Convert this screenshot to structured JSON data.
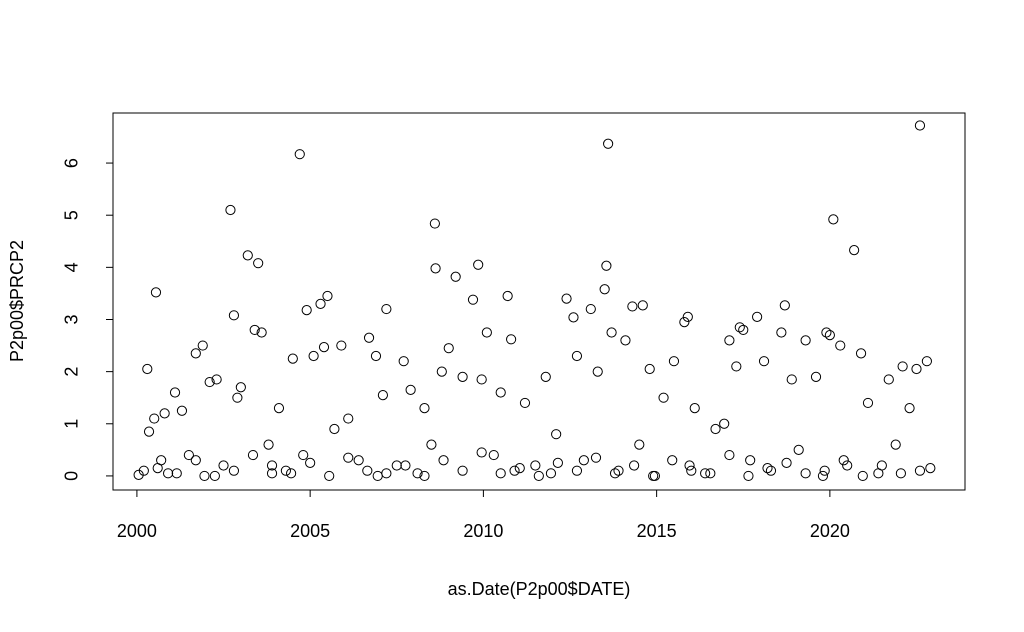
{
  "chart_data": {
    "type": "scatter",
    "x_label": "as.Date(P2p00$DATE)",
    "y_label": "P2p00$PRCP2",
    "xlim": [
      1999.31,
      2023.9
    ],
    "ylim": [
      -0.27,
      6.96
    ],
    "xticks": [
      2000,
      2005,
      2010,
      2015,
      2020
    ],
    "yticks": [
      0,
      1,
      2,
      3,
      4,
      5,
      6
    ],
    "color": "#000000",
    "grid": false,
    "x": [
      2000.2,
      2000.3,
      2000.35,
      2000.5,
      2000.55,
      2000.7,
      2000.8,
      2000.9,
      2001.1,
      2001.3,
      2001.5,
      2001.7,
      2001.9,
      2001.95,
      2002.1,
      2002.3,
      2002.5,
      2002.7,
      2002.8,
      2002.9,
      2003.0,
      2003.2,
      2003.4,
      2003.5,
      2003.6,
      2003.8,
      2003.9,
      2004.1,
      2004.3,
      2004.5,
      2004.7,
      2004.8,
      2004.9,
      2005.1,
      2005.3,
      2005.5,
      2005.4,
      2005.7,
      2005.9,
      2006.1,
      2006.4,
      2006.7,
      2006.9,
      2006.95,
      2007.1,
      2007.2,
      2007.5,
      2007.7,
      2007.9,
      2008.1,
      2008.3,
      2008.5,
      2008.6,
      2008.62,
      2008.8,
      2009.0,
      2009.2,
      2009.4,
      2009.7,
      2009.85,
      2009.95,
      2010.1,
      2010.3,
      2010.5,
      2010.7,
      2010.8,
      2010.9,
      2011.2,
      2011.5,
      2011.8,
      2011.95,
      2012.1,
      2012.4,
      2012.6,
      2012.7,
      2012.9,
      2013.1,
      2013.3,
      2013.5,
      2013.55,
      2013.6,
      2013.7,
      2013.9,
      2014.1,
      2014.3,
      2014.5,
      2014.6,
      2014.8,
      2014.95,
      2015.2,
      2015.5,
      2015.8,
      2015.9,
      2015.95,
      2016.1,
      2016.4,
      2016.7,
      2016.95,
      2017.1,
      2017.3,
      2017.4,
      2017.5,
      2017.7,
      2017.9,
      2018.1,
      2018.3,
      2018.6,
      2018.7,
      2018.9,
      2019.1,
      2019.3,
      2019.6,
      2019.8,
      2019.9,
      2020.0,
      2020.1,
      2020.3,
      2020.5,
      2020.7,
      2020.9,
      2021.1,
      2021.4,
      2021.7,
      2021.9,
      2022.1,
      2022.3,
      2022.5,
      2022.6,
      2022.8,
      2022.9,
      2000.05,
      2000.6,
      2001.15,
      2001.7,
      2002.25,
      2002.8,
      2003.35,
      2003.9,
      2004.45,
      2005.0,
      2005.55,
      2006.1,
      2006.65,
      2007.2,
      2007.75,
      2008.3,
      2008.85,
      2009.4,
      2009.95,
      2010.5,
      2011.05,
      2011.6,
      2012.15,
      2012.7,
      2013.25,
      2013.8,
      2014.35,
      2014.9,
      2015.45,
      2016.0,
      2016.55,
      2017.1,
      2017.65,
      2018.2,
      2018.75,
      2019.3,
      2019.85,
      2020.4,
      2020.95,
      2021.5,
      2022.05,
      2022.6
    ],
    "values": [
      0.1,
      2.05,
      0.85,
      1.1,
      3.52,
      0.3,
      1.2,
      0.05,
      1.6,
      1.25,
      0.4,
      2.35,
      2.5,
      0.0,
      1.8,
      1.85,
      0.2,
      5.1,
      3.08,
      1.5,
      1.7,
      4.23,
      2.8,
      4.08,
      2.75,
      0.6,
      0.05,
      1.3,
      0.1,
      2.25,
      6.17,
      0.4,
      3.18,
      2.3,
      3.3,
      3.45,
      2.47,
      0.9,
      2.5,
      1.1,
      0.3,
      2.65,
      2.3,
      0.0,
      1.55,
      3.2,
      0.2,
      2.2,
      1.65,
      0.05,
      1.3,
      0.6,
      4.84,
      3.98,
      2.0,
      2.45,
      3.82,
      1.9,
      3.38,
      4.05,
      1.85,
      2.75,
      0.4,
      1.6,
      3.45,
      2.62,
      0.1,
      1.4,
      0.2,
      1.9,
      0.05,
      0.8,
      3.4,
      3.04,
      2.3,
      0.3,
      3.2,
      2.0,
      3.58,
      4.03,
      6.37,
      2.75,
      0.1,
      2.6,
      3.25,
      0.6,
      3.27,
      2.05,
      0.0,
      1.5,
      2.2,
      2.95,
      3.05,
      0.2,
      1.3,
      0.05,
      0.9,
      1.0,
      2.6,
      2.1,
      2.85,
      2.8,
      0.3,
      3.05,
      2.2,
      0.1,
      2.75,
      3.27,
      1.85,
      0.5,
      2.6,
      1.9,
      0.0,
      2.75,
      2.7,
      4.92,
      2.5,
      0.2,
      4.33,
      2.35,
      1.4,
      0.05,
      1.85,
      0.6,
      2.1,
      1.3,
      2.05,
      6.72,
      2.2,
      0.15,
      0.02,
      0.15,
      0.05,
      0.3,
      0.0,
      0.1,
      0.4,
      0.2,
      0.05,
      0.25,
      0.0,
      0.35,
      0.1,
      0.05,
      0.2,
      0.0,
      0.3,
      0.1,
      0.45,
      0.05,
      0.15,
      0.0,
      0.25,
      0.1,
      0.35,
      0.05,
      0.2,
      0.0,
      0.3,
      0.1,
      0.05,
      0.4,
      0.0,
      0.15,
      0.25,
      0.05,
      0.1,
      0.3,
      0.0,
      0.2,
      0.05,
      0.1
    ]
  }
}
